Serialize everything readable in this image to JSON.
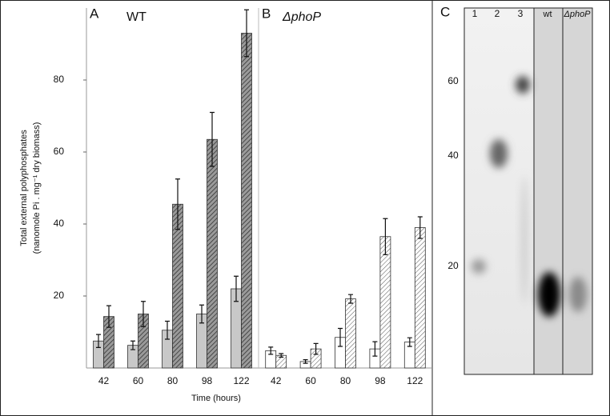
{
  "chart_data": [
    {
      "type": "bar",
      "panel": "A",
      "title": "WT",
      "categories": [
        "42",
        "60",
        "80",
        "98",
        "122"
      ],
      "series": [
        {
          "color": "#c8c8c8",
          "hatch": false,
          "values": [
            7.5,
            6.3,
            10.5,
            15,
            22
          ],
          "errors": [
            1.8,
            1.2,
            2.5,
            2.5,
            3.5
          ]
        },
        {
          "color": "#8a8a8a",
          "hatch": true,
          "values": [
            14.3,
            15,
            45.5,
            63.5,
            93
          ],
          "errors": [
            3,
            3.5,
            7,
            7.5,
            6.5
          ]
        }
      ],
      "ylim": [
        0,
        100
      ],
      "yticks": [
        20,
        40,
        60,
        80
      ],
      "ylabel": [
        "Total external polyphosphates",
        "(nanomole Pi . mg⁻¹ dry biomass)"
      ],
      "xlabel": "Time (hours)"
    },
    {
      "type": "bar",
      "panel": "B",
      "title": "ΔphoP",
      "categories": [
        "42",
        "60",
        "80",
        "98",
        "122"
      ],
      "series": [
        {
          "color": "#ffffff",
          "hatch": false,
          "values": [
            4.8,
            1.8,
            8.5,
            5.3,
            7.2
          ],
          "errors": [
            1,
            0.5,
            2.5,
            2,
            1.2
          ]
        },
        {
          "color": "#e4e4e4",
          "hatch": true,
          "values": [
            3.5,
            5.3,
            19.2,
            36.5,
            39
          ],
          "errors": [
            0.5,
            1.5,
            1.2,
            5,
            3
          ]
        }
      ],
      "ylim": [
        0,
        100
      ]
    }
  ],
  "gel": {
    "panel": "C",
    "lanes": [
      "1",
      "2",
      "3",
      "wt",
      "ΔphoP"
    ],
    "markers": [
      "60",
      "40",
      "20"
    ]
  }
}
